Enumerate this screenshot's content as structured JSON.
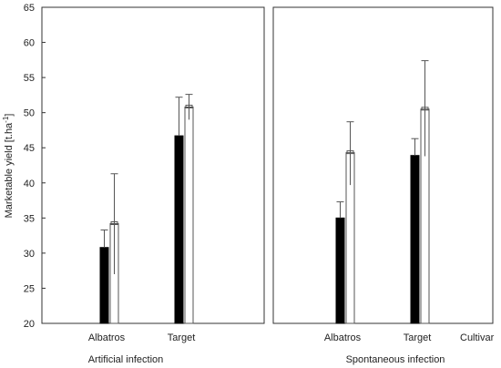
{
  "chart_data": {
    "type": "bar",
    "ylabel": "Marketable yield [t.ha",
    "ylabel_superscript": "-1",
    "ylabel_suffix": "]",
    "ylim": [
      20,
      65
    ],
    "yticks": [
      20,
      25,
      30,
      35,
      40,
      45,
      50,
      55,
      60,
      65
    ],
    "extra_label": "Cultivar",
    "panels": [
      {
        "xlabel": "Artificial infection",
        "categories": [
          "Albatros",
          "Target"
        ],
        "series": [
          {
            "style": "solid",
            "values": [
              30.8,
              46.7
            ],
            "error_upper": [
              33.3,
              52.2
            ]
          },
          {
            "style": "hollow",
            "values": [
              34.2,
              50.8
            ],
            "error_upper": [
              41.3,
              52.6
            ],
            "inner_lower": [
              27.0,
              49.0
            ]
          }
        ]
      },
      {
        "xlabel": "Spontaneous infection",
        "categories": [
          "Albatros",
          "Target"
        ],
        "series": [
          {
            "style": "solid",
            "values": [
              35.0,
              43.9
            ],
            "error_upper": [
              37.3,
              46.3
            ]
          },
          {
            "style": "hollow",
            "values": [
              44.3,
              50.5
            ],
            "error_upper": [
              48.7,
              57.4
            ],
            "inner_lower": [
              39.7,
              43.8
            ]
          }
        ]
      }
    ],
    "colors": {
      "solid": "#000000",
      "hollow": "#ffffff",
      "stroke": "#555555",
      "frame": "#333333"
    }
  }
}
